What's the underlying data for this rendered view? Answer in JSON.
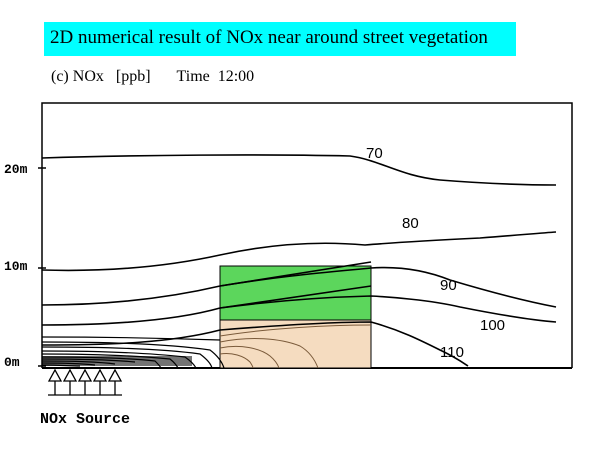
{
  "title": "2D numerical result of NOx near around street vegetation",
  "subtitle": {
    "panel": "(c) NOx",
    "unit": "[ppb]",
    "time_label": "Time",
    "time_value": "12:00"
  },
  "y_axis": {
    "ticks": [
      "20m",
      "10m",
      "0m"
    ]
  },
  "contour_labels": [
    "70",
    "80",
    "90",
    "100",
    "110"
  ],
  "source_label": "NOx Source",
  "colors": {
    "title_bg": "#00ffff",
    "vegetation": "#5cd65c",
    "ground_zone": "#f5dcc0",
    "line": "#000000"
  },
  "chart_data": {
    "type": "contour",
    "title": "(c) NOx [ppb] Time 12:00",
    "ylabel": "",
    "y_ticks": [
      "0m",
      "10m",
      "20m"
    ],
    "levels": [
      70,
      80,
      90,
      100,
      110
    ],
    "legend": "none",
    "grid": false
  }
}
